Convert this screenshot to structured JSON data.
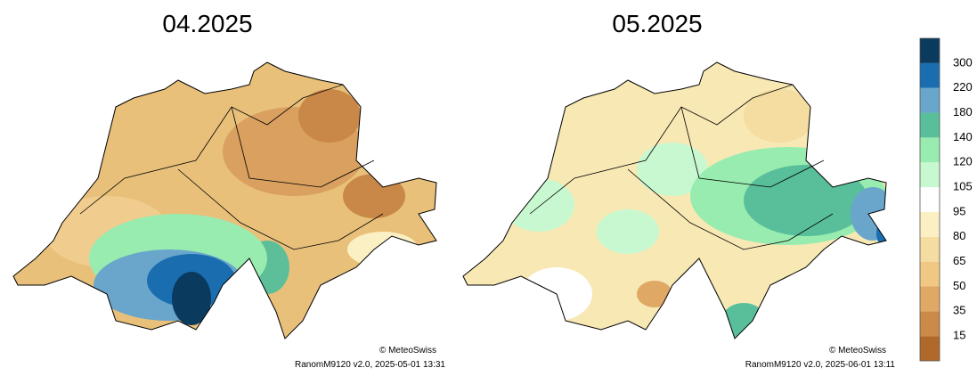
{
  "maps": [
    {
      "title": "04.2025",
      "credit": "© MeteoSwiss",
      "footer": "RanomM9120 v2.0, 2025-05-01 13:31"
    },
    {
      "title": "05.2025",
      "credit": "© MeteoSwiss",
      "footer": "RanomM9120 v2.0, 2025-06-01 13:11"
    }
  ],
  "colorbar": {
    "labels": [
      15,
      35,
      50,
      65,
      80,
      95,
      105,
      120,
      140,
      180,
      220,
      300
    ],
    "colors": [
      "#b0692a",
      "#cc8a48",
      "#e0a865",
      "#f0c884",
      "#f5dca0",
      "#fbf0c4",
      "#ffffff",
      "#c8f8d0",
      "#98ecb0",
      "#58bf9a",
      "#6aa6cc",
      "#1a6eb0",
      "#0a3a5e"
    ]
  }
}
